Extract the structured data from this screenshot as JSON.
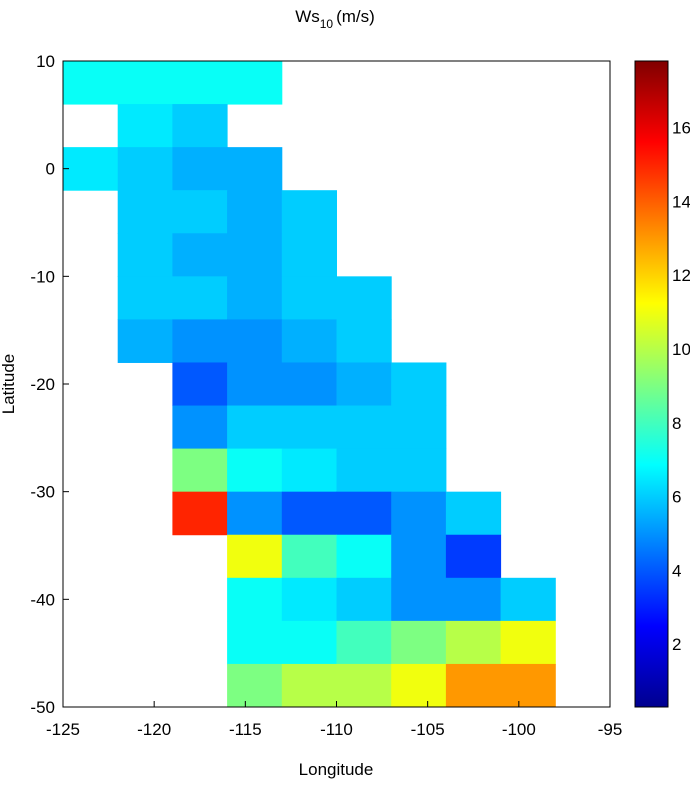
{
  "chart_data": {
    "type": "heatmap",
    "title": {
      "main": "Ws",
      "subscript": "10",
      "unit": "(m/s)"
    },
    "x_label": "Longitude",
    "y_label": "Latitude",
    "xlim": [
      -125,
      -95
    ],
    "ylim": [
      -50,
      10
    ],
    "xticks": [
      -125,
      -120,
      -115,
      -110,
      -105,
      -100,
      -95
    ],
    "yticks": [
      -50,
      -40,
      -30,
      -20,
      -10,
      0,
      10
    ],
    "cell_size": [
      3,
      4
    ],
    "x": [
      -123.5,
      -120.5,
      -117.5,
      -114.5,
      -111.5,
      -108.5,
      -105.5,
      -102.5,
      -99.5,
      -96.5
    ],
    "y": [
      8,
      4,
      0,
      -4,
      -8,
      -12,
      -16,
      -20,
      -24,
      -28,
      -32,
      -36,
      -40,
      -44,
      -48
    ],
    "z": [
      [
        7,
        7,
        7,
        7,
        null,
        null,
        null,
        null,
        null,
        null
      ],
      [
        null,
        6.5,
        6,
        null,
        null,
        null,
        null,
        null,
        null,
        null
      ],
      [
        6.5,
        6,
        5.5,
        5.5,
        null,
        null,
        null,
        null,
        null,
        null
      ],
      [
        null,
        6,
        6,
        5.5,
        6,
        null,
        null,
        null,
        null,
        null
      ],
      [
        null,
        6,
        5.5,
        5.5,
        6,
        null,
        null,
        null,
        null,
        null
      ],
      [
        null,
        6,
        6,
        5.5,
        6,
        6,
        null,
        null,
        null,
        null
      ],
      [
        null,
        5.5,
        5,
        5,
        5.5,
        6,
        null,
        null,
        null,
        null
      ],
      [
        null,
        null,
        4,
        5,
        5,
        5.5,
        6,
        null,
        null,
        null
      ],
      [
        null,
        null,
        5,
        6,
        6,
        6,
        6,
        null,
        null,
        null
      ],
      [
        null,
        null,
        9,
        7,
        6.5,
        6,
        6,
        null,
        null,
        null
      ],
      [
        null,
        null,
        15,
        5,
        4,
        4,
        5,
        6,
        null,
        null
      ],
      [
        null,
        null,
        null,
        11,
        8,
        7,
        5,
        3.5,
        null,
        null
      ],
      [
        null,
        null,
        null,
        7,
        6.5,
        6,
        5,
        5,
        6,
        null
      ],
      [
        null,
        null,
        null,
        7,
        7,
        8,
        9,
        10,
        11,
        null
      ],
      [
        null,
        null,
        null,
        9,
        10,
        10,
        11,
        13,
        13,
        null
      ]
    ],
    "colormap": "jet",
    "clim": [
      0.3,
      17.8
    ],
    "colorbar_ticks": [
      2,
      4,
      6,
      8,
      10,
      12,
      14,
      16
    ]
  }
}
